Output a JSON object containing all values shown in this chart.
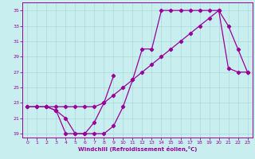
{
  "xlabel": "Windchill (Refroidissement éolien,°C)",
  "background_color": "#c8eef0",
  "grid_color": "#aad8dc",
  "line_color": "#990099",
  "xlim": [
    -0.5,
    23.5
  ],
  "ylim": [
    18.5,
    36.0
  ],
  "yticks": [
    19,
    21,
    23,
    25,
    27,
    29,
    31,
    33,
    35
  ],
  "xticks": [
    0,
    1,
    2,
    3,
    4,
    5,
    6,
    7,
    8,
    9,
    10,
    11,
    12,
    13,
    14,
    15,
    16,
    17,
    18,
    19,
    20,
    21,
    22,
    23
  ],
  "series1_x": [
    0,
    1,
    2,
    3,
    4,
    5,
    6,
    7,
    8,
    9
  ],
  "series1_y": [
    22.5,
    22.5,
    22.5,
    22.0,
    19.0,
    19.0,
    19.0,
    20.5,
    23.0,
    26.5
  ],
  "series2_x": [
    2,
    3,
    4,
    5,
    6,
    7,
    8,
    9,
    10,
    11,
    12,
    13,
    14,
    15,
    16,
    17,
    18,
    19,
    20,
    21,
    22,
    23
  ],
  "series2_y": [
    22.5,
    22.0,
    21.0,
    19.0,
    19.0,
    19.0,
    19.0,
    20.0,
    22.5,
    26.0,
    30.0,
    30.0,
    35.0,
    35.0,
    35.0,
    35.0,
    35.0,
    35.0,
    35.0,
    33.0,
    30.0,
    27.0
  ],
  "series3_x": [
    0,
    1,
    2,
    3,
    4,
    5,
    6,
    7,
    8,
    9,
    10,
    11,
    12,
    13,
    14,
    15,
    16,
    17,
    18,
    19,
    20,
    21,
    22,
    23
  ],
  "series3_y": [
    22.5,
    22.5,
    22.5,
    22.5,
    22.5,
    22.5,
    22.5,
    22.5,
    23.0,
    24.0,
    25.0,
    26.0,
    27.0,
    28.0,
    29.0,
    30.0,
    31.0,
    32.0,
    33.0,
    34.0,
    35.0,
    27.5,
    27.0,
    27.0
  ]
}
